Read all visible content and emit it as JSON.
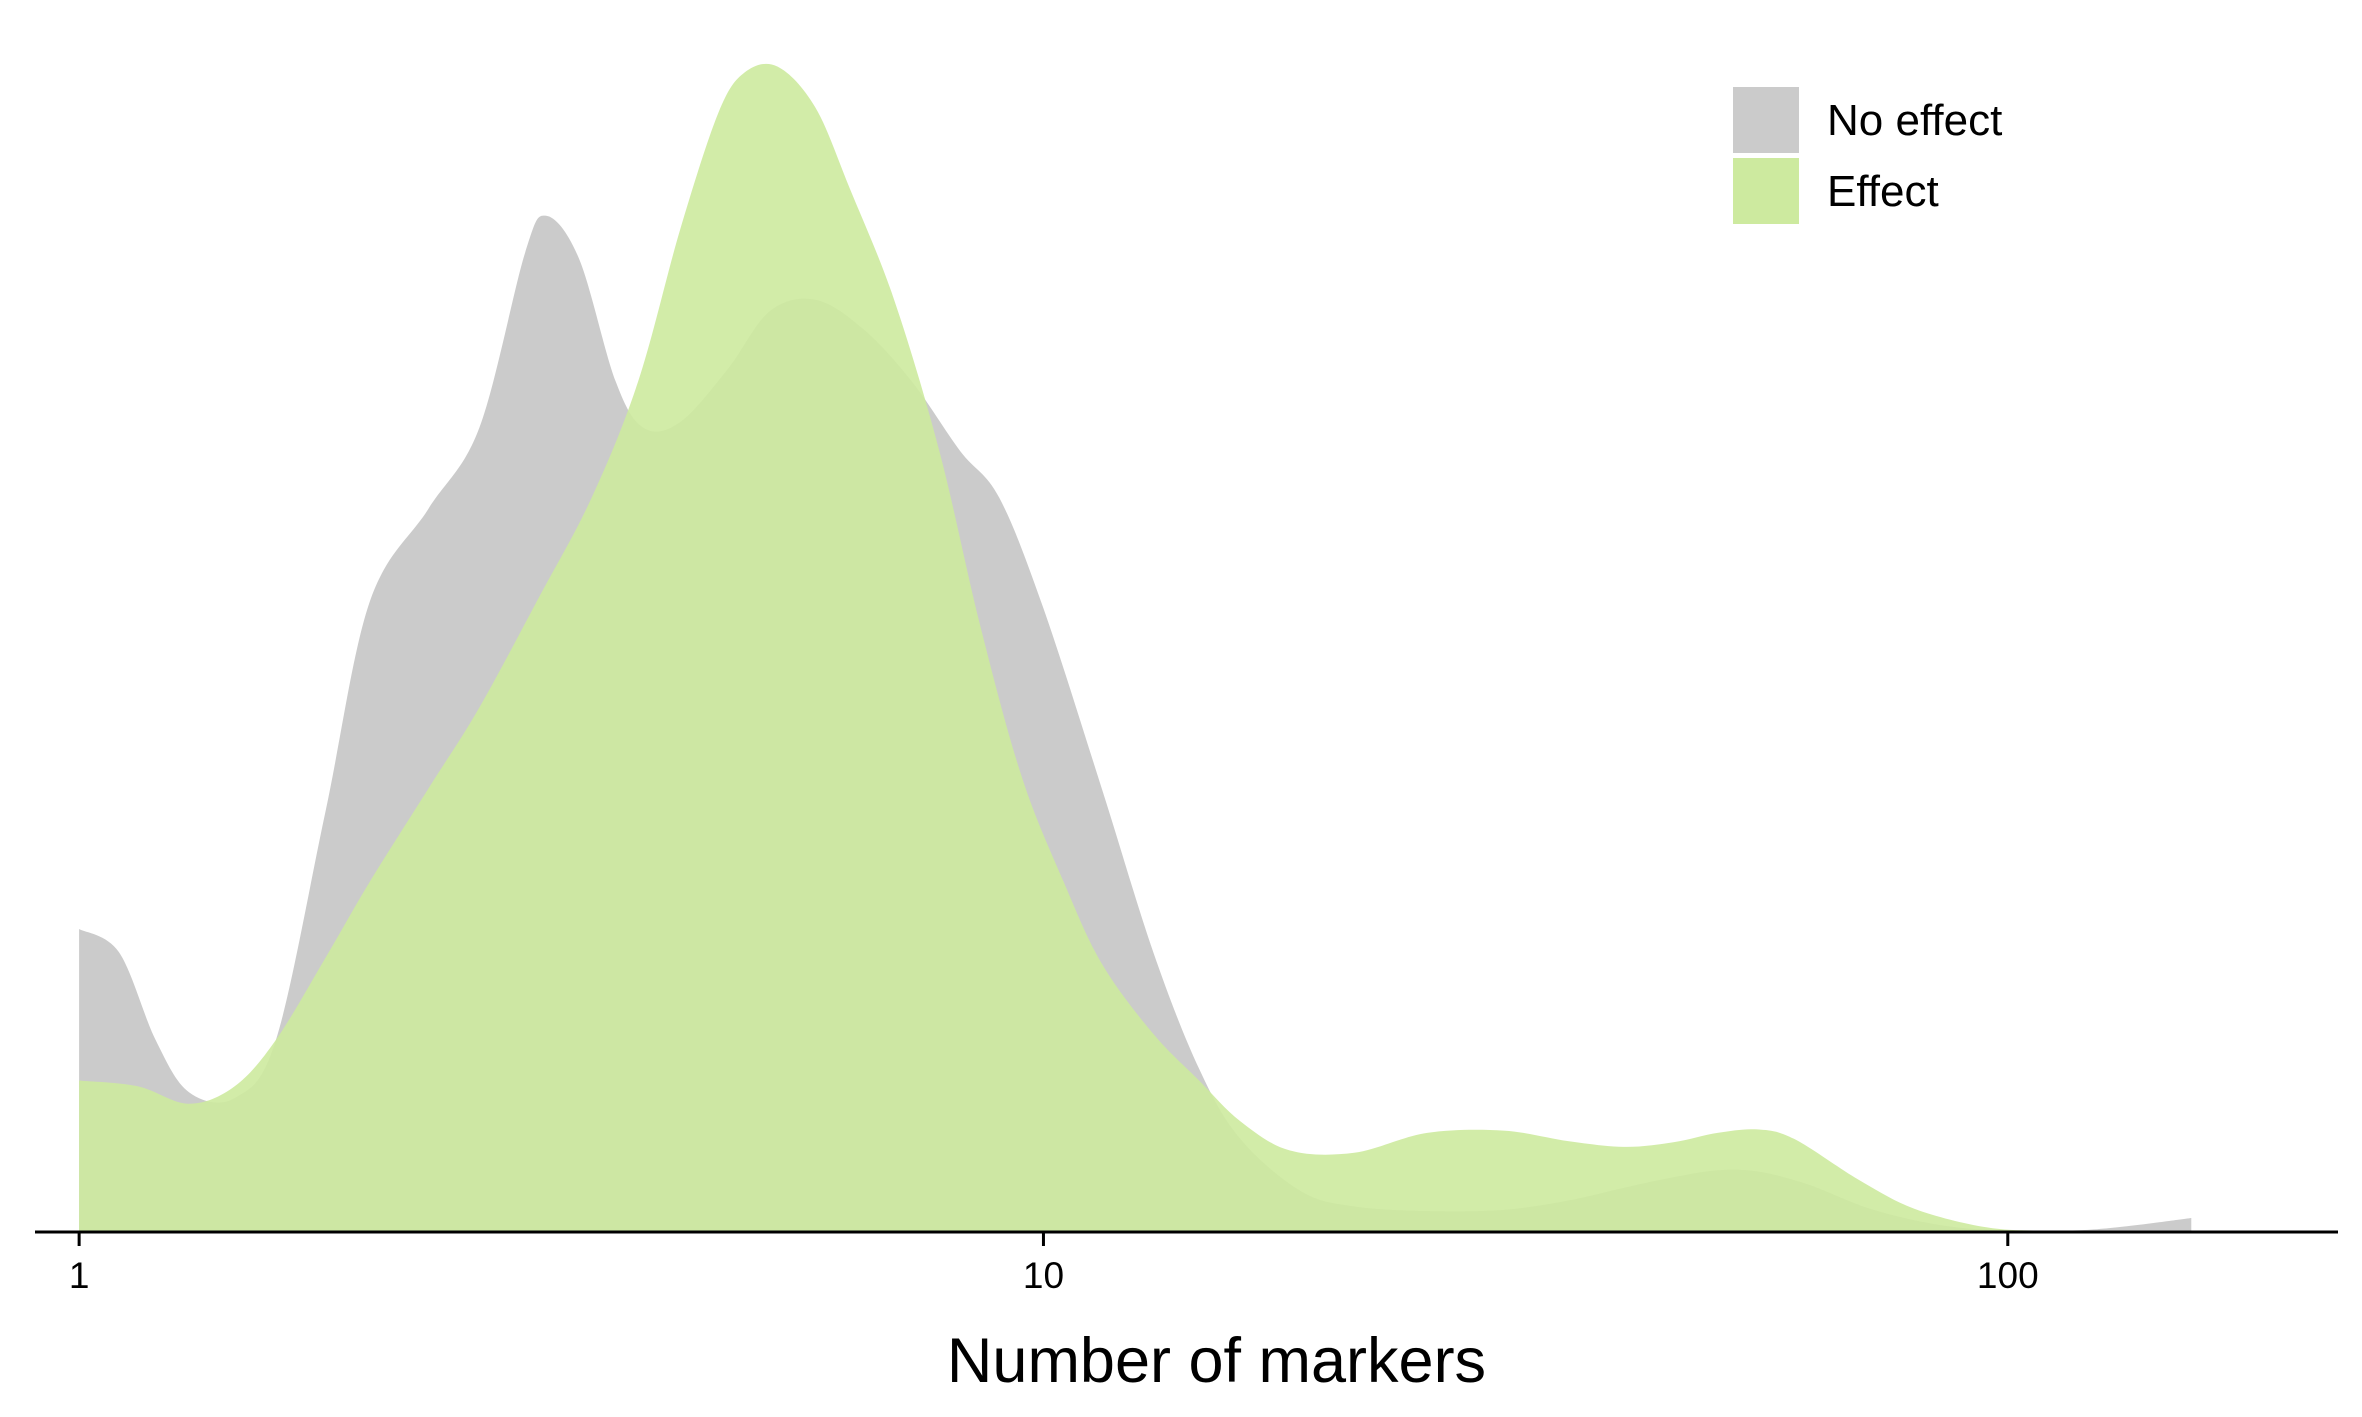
{
  "chart_data": {
    "type": "area",
    "subtype": "density",
    "title": "",
    "xlabel": "Number of markers",
    "ylabel": "",
    "x_scale": "log10",
    "xlim": [
      0.9,
      220
    ],
    "ylim": [
      0,
      1.04
    ],
    "x_ticks": [
      {
        "value": 1,
        "label": "1"
      },
      {
        "value": 10,
        "label": "10"
      },
      {
        "value": 100,
        "label": "100"
      }
    ],
    "y_axis_visible": false,
    "grid": false,
    "legend": {
      "position": "top-right",
      "entries": [
        "No effect",
        "Effect"
      ]
    },
    "series": [
      {
        "name": "No effect",
        "color": "#cbcbcb",
        "x": [
          1,
          1.1,
          1.2,
          1.3,
          1.45,
          1.6,
          1.8,
          2.0,
          2.3,
          2.6,
          2.9,
          3.05,
          3.3,
          3.6,
          3.85,
          4.2,
          4.7,
          5.2,
          5.8,
          6.5,
          7.3,
          8.2,
          9.0,
          10.0,
          11.5,
          13.0,
          14.5,
          16.0,
          18.5,
          21,
          25,
          30,
          35,
          40,
          45,
          50,
          55,
          62,
          72,
          85,
          100,
          115,
          130,
          155
        ],
        "y": [
          0.26,
          0.24,
          0.165,
          0.12,
          0.115,
          0.165,
          0.36,
          0.54,
          0.62,
          0.69,
          0.84,
          0.872,
          0.835,
          0.73,
          0.69,
          0.695,
          0.74,
          0.79,
          0.8,
          0.775,
          0.73,
          0.67,
          0.63,
          0.535,
          0.38,
          0.24,
          0.14,
          0.08,
          0.035,
          0.022,
          0.018,
          0.019,
          0.027,
          0.038,
          0.047,
          0.053,
          0.052,
          0.041,
          0.02,
          0.006,
          0.001,
          0.001,
          0.004,
          0.012
        ]
      },
      {
        "name": "Effect",
        "color": "#cdea9f",
        "x": [
          1,
          1.15,
          1.3,
          1.45,
          1.6,
          1.8,
          2.0,
          2.3,
          2.6,
          3.0,
          3.4,
          3.8,
          4.2,
          4.6,
          4.9,
          5.3,
          5.8,
          6.3,
          7.0,
          7.8,
          8.6,
          9.5,
          10.5,
          11.5,
          13,
          14.5,
          16,
          18,
          21,
          25,
          30,
          35,
          40,
          45,
          50,
          55,
          60,
          70,
          80,
          95,
          110,
          130
        ],
        "y": [
          0.13,
          0.125,
          0.11,
          0.125,
          0.165,
          0.235,
          0.3,
          0.38,
          0.45,
          0.545,
          0.63,
          0.73,
          0.86,
          0.96,
          0.995,
          1.0,
          0.965,
          0.895,
          0.8,
          0.67,
          0.52,
          0.39,
          0.3,
          0.23,
          0.17,
          0.13,
          0.095,
          0.07,
          0.068,
          0.085,
          0.087,
          0.078,
          0.073,
          0.077,
          0.085,
          0.088,
          0.08,
          0.045,
          0.02,
          0.004,
          0.001,
          0.0
        ]
      }
    ]
  }
}
